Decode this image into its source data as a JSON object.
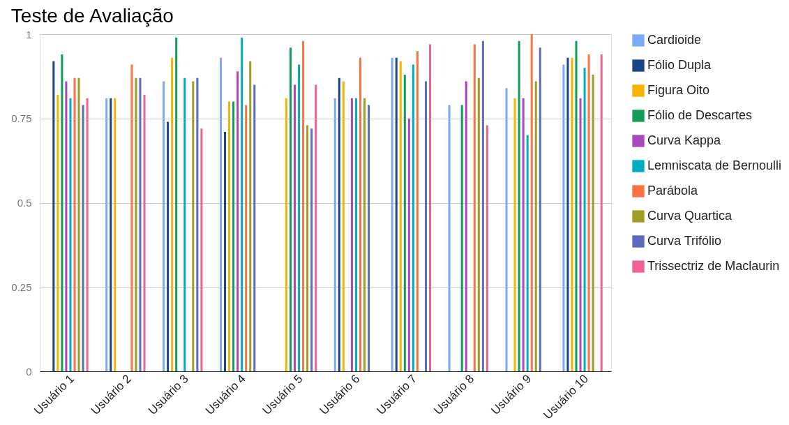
{
  "chart_data": {
    "type": "bar",
    "title": "Teste de Avaliação",
    "categories": [
      "Usuário 1",
      "Usuário 2",
      "Usuário 3",
      "Usuário 4",
      "Usuário 5",
      "Usuário 6",
      "Usuário 7",
      "Usuário 8",
      "Usuário 9",
      "Usuário 10"
    ],
    "series": [
      {
        "name": "Cardioide",
        "color": "#7baaf7",
        "values": [
          null,
          0.81,
          0.86,
          0.93,
          null,
          0.81,
          0.93,
          0.79,
          0.84,
          0.91
        ]
      },
      {
        "name": "Fólio Dupla",
        "color": "#1c4587",
        "values": [
          0.92,
          0.81,
          0.74,
          0.71,
          null,
          0.87,
          0.93,
          null,
          null,
          0.93
        ]
      },
      {
        "name": "Figura Oito",
        "color": "#f4b400",
        "values": [
          0.82,
          0.81,
          0.93,
          0.8,
          0.81,
          0.86,
          0.92,
          null,
          0.81,
          0.93
        ]
      },
      {
        "name": "Fólio de Descartes",
        "color": "#0f9d58",
        "values": [
          0.94,
          null,
          0.99,
          0.8,
          0.96,
          null,
          0.88,
          0.79,
          0.98,
          0.98
        ]
      },
      {
        "name": "Curva Kappa",
        "color": "#ab47bc",
        "values": [
          0.86,
          null,
          null,
          0.89,
          0.85,
          0.81,
          0.75,
          0.86,
          0.81,
          0.81
        ]
      },
      {
        "name": "Lemniscata de Bernoulli",
        "color": "#00acc1",
        "values": [
          0.81,
          null,
          0.87,
          0.99,
          0.91,
          0.81,
          0.91,
          null,
          0.7,
          0.9
        ]
      },
      {
        "name": "Parábola",
        "color": "#ff7043",
        "values": [
          0.87,
          0.91,
          null,
          0.79,
          0.98,
          0.93,
          0.95,
          0.97,
          1.0,
          0.94
        ]
      },
      {
        "name": "Curva Quartica",
        "color": "#9e9d24",
        "values": [
          0.87,
          0.87,
          0.86,
          0.92,
          0.73,
          0.81,
          null,
          0.87,
          0.86,
          0.88
        ]
      },
      {
        "name": "Curva Trifólio",
        "color": "#5c6bc0",
        "values": [
          0.79,
          0.87,
          0.87,
          0.85,
          0.72,
          0.79,
          0.86,
          0.98,
          0.96,
          null
        ]
      },
      {
        "name": "Trissectriz de Maclaurin",
        "color": "#f06292",
        "values": [
          0.81,
          0.82,
          0.72,
          null,
          0.85,
          null,
          0.97,
          0.73,
          null,
          0.94
        ]
      }
    ],
    "ylim": [
      0,
      1
    ],
    "yticks": [
      0,
      0.25,
      0.5,
      0.75,
      1
    ],
    "grid": "y",
    "legend": "right"
  }
}
